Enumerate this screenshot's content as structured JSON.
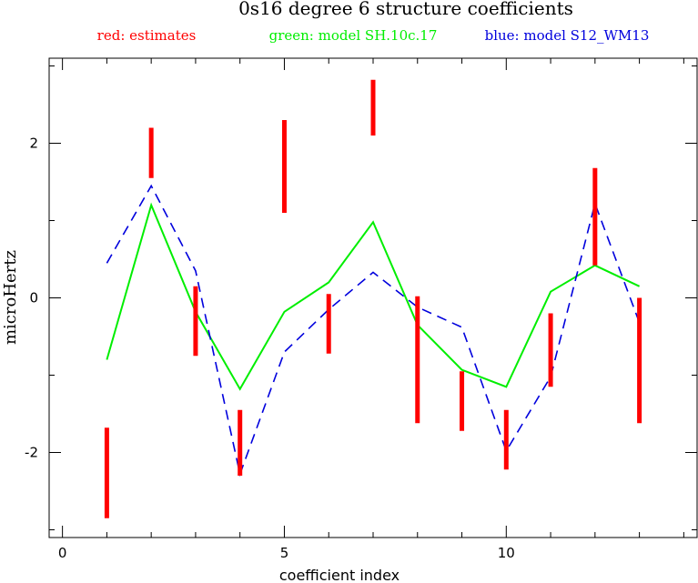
{
  "chart_data": {
    "type": "line",
    "title": "0s16 degree 6 structure coefficients",
    "legend": [
      {
        "text": "red: estimates",
        "color": "#ff0000"
      },
      {
        "text": "green: model SH.10c.17",
        "color": "#00ee00"
      },
      {
        "text": "blue: model S12_WM13",
        "color": "#0000dd"
      }
    ],
    "xlabel": "coefficient index",
    "ylabel": "microHertz",
    "xlim": [
      -0.3,
      14.3
    ],
    "ylim": [
      -3.1,
      3.1
    ],
    "xticks": [
      0,
      5,
      10
    ],
    "yticks": [
      -2,
      0,
      2
    ],
    "estimates": [
      {
        "x": 1,
        "low": -2.85,
        "high": -1.68
      },
      {
        "x": 2,
        "low": 1.55,
        "high": 2.2
      },
      {
        "x": 3,
        "low": -0.75,
        "high": 0.15
      },
      {
        "x": 4,
        "low": -2.3,
        "high": -1.45
      },
      {
        "x": 5,
        "low": 1.1,
        "high": 2.3
      },
      {
        "x": 6,
        "low": -0.72,
        "high": 0.05
      },
      {
        "x": 7,
        "low": 2.1,
        "high": 2.82
      },
      {
        "x": 8,
        "low": -1.62,
        "high": 0.02
      },
      {
        "x": 9,
        "low": -1.72,
        "high": -0.95
      },
      {
        "x": 10,
        "low": -2.22,
        "high": -1.45
      },
      {
        "x": 11,
        "low": -1.15,
        "high": -0.2
      },
      {
        "x": 12,
        "low": 0.42,
        "high": 1.68
      },
      {
        "x": 13,
        "low": -1.62,
        "high": 0.0
      }
    ],
    "series": [
      {
        "name": "model SH.10c.17",
        "x": [
          1,
          2,
          3,
          4,
          5,
          6,
          7,
          8,
          9,
          10,
          11,
          12,
          13
        ],
        "values": [
          -0.8,
          1.2,
          -0.18,
          -1.18,
          -0.18,
          0.2,
          0.98,
          -0.35,
          -0.93,
          -1.15,
          0.08,
          0.42,
          0.15
        ]
      },
      {
        "name": "model S12_WM13",
        "x": [
          1,
          2,
          3,
          4,
          5,
          6,
          7,
          8,
          9,
          10,
          11,
          12,
          13
        ],
        "values": [
          0.45,
          1.45,
          0.35,
          -2.28,
          -0.7,
          -0.15,
          0.33,
          -0.12,
          -0.38,
          -1.98,
          -1.02,
          1.22,
          -0.32
        ]
      }
    ]
  }
}
